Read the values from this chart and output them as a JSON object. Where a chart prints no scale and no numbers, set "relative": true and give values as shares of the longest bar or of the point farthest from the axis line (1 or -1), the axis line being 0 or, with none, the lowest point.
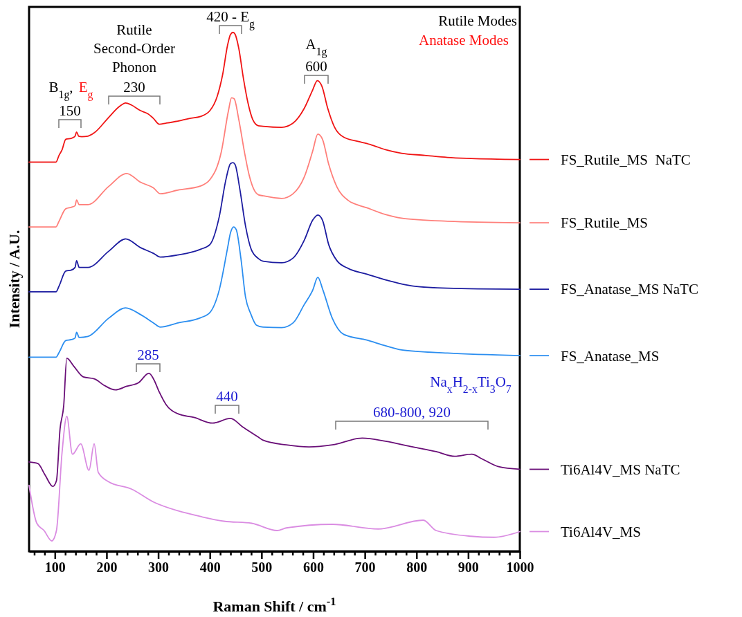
{
  "chart_data": {
    "type": "line",
    "relative": true,
    "xlabel": "Raman Shift / cm$^{-1}$",
    "ylabel": "Intensity / A.U.",
    "xlim": [
      50,
      1000
    ],
    "xticks": [
      {
        "value": 60,
        "label": null
      },
      {
        "value": 80,
        "label": null
      },
      100,
      {
        "value": 120,
        "label": null
      },
      {
        "value": 140,
        "label": null
      },
      {
        "value": 160,
        "label": null
      },
      {
        "value": 180,
        "label": null
      },
      200,
      {
        "value": 220,
        "label": null
      },
      {
        "value": 240,
        "label": null
      },
      {
        "value": 260,
        "label": null
      },
      {
        "value": 280,
        "label": null
      },
      300,
      {
        "value": 320,
        "label": null
      },
      {
        "value": 340,
        "label": null
      },
      {
        "value": 360,
        "label": null
      },
      {
        "value": 380,
        "label": null
      },
      400,
      {
        "value": 420,
        "label": null
      },
      {
        "value": 440,
        "label": null
      },
      {
        "value": 460,
        "label": null
      },
      {
        "value": 480,
        "label": null
      },
      500,
      {
        "value": 520,
        "label": null
      },
      {
        "value": 540,
        "label": null
      },
      {
        "value": 560,
        "label": null
      },
      {
        "value": 580,
        "label": null
      },
      600,
      {
        "value": 620,
        "label": null
      },
      {
        "value": 640,
        "label": null
      },
      {
        "value": 660,
        "label": null
      },
      {
        "value": 680,
        "label": null
      },
      700,
      {
        "value": 720,
        "label": null
      },
      {
        "value": 740,
        "label": null
      },
      {
        "value": 760,
        "label": null
      },
      {
        "value": 780,
        "label": null
      },
      800,
      {
        "value": 820,
        "label": null
      },
      {
        "value": 840,
        "label": null
      },
      {
        "value": 860,
        "label": null
      },
      {
        "value": 880,
        "label": null
      },
      900,
      {
        "value": 920,
        "label": null
      },
      {
        "value": 940,
        "label": null
      },
      {
        "value": 960,
        "label": null
      },
      {
        "value": 980,
        "label": null
      },
      1000
    ],
    "legend": "right",
    "series": [
      {
        "name": "FS_Rutile_MS  NaTC",
        "color": "#f01414",
        "x": [
          50,
          102,
          108,
          114,
          121,
          132,
          139,
          142,
          146,
          152,
          164,
          177,
          204,
          226,
          237,
          248,
          266,
          280,
          291,
          302,
          315,
          338,
          360,
          382,
          400,
          414,
          425,
          434,
          440,
          445,
          449,
          456,
          465,
          474,
          483,
          494,
          503,
          539,
          561,
          583,
          599,
          608,
          617,
          628,
          641,
          659,
          691,
          713,
          740,
          771,
          816,
          860,
          905,
          1000
        ],
        "values": [
          0.75,
          0.75,
          0.763,
          0.774,
          0.794,
          0.796,
          0.8,
          0.808,
          0.8,
          0.799,
          0.8,
          0.807,
          0.836,
          0.858,
          0.864,
          0.86,
          0.849,
          0.843,
          0.834,
          0.823,
          0.825,
          0.829,
          0.834,
          0.838,
          0.849,
          0.876,
          0.92,
          0.974,
          0.996,
          1.0,
          0.996,
          0.969,
          0.911,
          0.863,
          0.832,
          0.82,
          0.819,
          0.817,
          0.825,
          0.854,
          0.889,
          0.907,
          0.896,
          0.854,
          0.818,
          0.798,
          0.789,
          0.783,
          0.774,
          0.767,
          0.763,
          0.759,
          0.757,
          0.755
        ]
      },
      {
        "name": "FS_Rutile_MS",
        "color": "#ff7f7a",
        "x": [
          50,
          102,
          108,
          121,
          132,
          139,
          142,
          147,
          164,
          204,
          239,
          266,
          291,
          304,
          338,
          382,
          400,
          422,
          436,
          442,
          447,
          456,
          467,
          476,
          487,
          494,
          503,
          539,
          561,
          583,
          599,
          609,
          618,
          630,
          646,
          668,
          704,
          740,
          771,
          860,
          1000
        ],
        "values": [
          0.625,
          0.625,
          0.636,
          0.66,
          0.663,
          0.666,
          0.677,
          0.668,
          0.668,
          0.703,
          0.728,
          0.711,
          0.7,
          0.689,
          0.696,
          0.704,
          0.716,
          0.769,
          0.849,
          0.874,
          0.872,
          0.832,
          0.769,
          0.725,
          0.694,
          0.687,
          0.685,
          0.68,
          0.689,
          0.722,
          0.771,
          0.804,
          0.794,
          0.746,
          0.702,
          0.676,
          0.662,
          0.649,
          0.642,
          0.636,
          0.633
        ]
      },
      {
        "name": "FS_Anatase_MS NaTC",
        "color": "#1c1ca0",
        "x": [
          50,
          102,
          108,
          121,
          132,
          139,
          142,
          147,
          164,
          204,
          237,
          266,
          291,
          304,
          338,
          382,
          400,
          418,
          431,
          440,
          445,
          449,
          458,
          469,
          480,
          494,
          503,
          539,
          561,
          583,
          599,
          609,
          618,
          630,
          646,
          668,
          704,
          740,
          794,
          860,
          1000
        ],
        "values": [
          0.5,
          0.5,
          0.511,
          0.54,
          0.542,
          0.547,
          0.56,
          0.547,
          0.547,
          0.578,
          0.602,
          0.585,
          0.574,
          0.567,
          0.571,
          0.582,
          0.591,
          0.644,
          0.716,
          0.747,
          0.749,
          0.745,
          0.698,
          0.627,
          0.582,
          0.564,
          0.559,
          0.556,
          0.565,
          0.6,
          0.638,
          0.648,
          0.638,
          0.591,
          0.56,
          0.545,
          0.534,
          0.523,
          0.511,
          0.507,
          0.505
        ]
      },
      {
        "name": "FS_Anatase_MS",
        "color": "#2b8ef0",
        "x": [
          50,
          102,
          108,
          121,
          132,
          139,
          142,
          147,
          164,
          204,
          237,
          266,
          291,
          304,
          338,
          382,
          400,
          418,
          434,
          440,
          446,
          451,
          460,
          469,
          479,
          490,
          503,
          539,
          561,
          583,
          599,
          609,
          619,
          637,
          659,
          704,
          740,
          771,
          860,
          1000
        ],
        "values": [
          0.374,
          0.374,
          0.383,
          0.406,
          0.408,
          0.411,
          0.422,
          0.412,
          0.414,
          0.449,
          0.469,
          0.456,
          0.44,
          0.432,
          0.44,
          0.45,
          0.46,
          0.503,
          0.583,
          0.614,
          0.625,
          0.62,
          0.565,
          0.49,
          0.458,
          0.436,
          0.432,
          0.431,
          0.44,
          0.476,
          0.503,
          0.528,
          0.503,
          0.449,
          0.418,
          0.407,
          0.396,
          0.388,
          0.382,
          0.377
        ]
      },
      {
        "name": "Ti6Al4V_MS NaTC",
        "color": "#6a0f78",
        "x": [
          50,
          67,
          81,
          96,
          103,
          110,
          117,
          123,
          137,
          155,
          177,
          195,
          217,
          239,
          262,
          282,
          291,
          302,
          315,
          338,
          369,
          405,
          440,
          463,
          494,
          503,
          548,
          592,
          637,
          695,
          740,
          793,
          838,
          874,
          907,
          927,
          959,
          1000
        ],
        "values": [
          0.172,
          0.169,
          0.147,
          0.125,
          0.136,
          0.236,
          0.28,
          0.372,
          0.356,
          0.336,
          0.332,
          0.32,
          0.311,
          0.318,
          0.325,
          0.343,
          0.332,
          0.307,
          0.283,
          0.265,
          0.258,
          0.247,
          0.256,
          0.24,
          0.22,
          0.214,
          0.205,
          0.201,
          0.205,
          0.218,
          0.212,
          0.201,
          0.192,
          0.183,
          0.187,
          0.178,
          0.163,
          0.158
        ]
      },
      {
        "name": "Ti6Al4V_MS",
        "color": "#da8ce2",
        "x": [
          50,
          65,
          79,
          94,
          103,
          114,
          123,
          134,
          150,
          166,
          176,
          184,
          204,
          248,
          293,
          338,
          382,
          427,
          481,
          530,
          548,
          637,
          726,
          813,
          838,
          905,
          950,
          1000
        ],
        "values": [
          0.127,
          0.054,
          0.04,
          0.02,
          0.04,
          0.192,
          0.26,
          0.187,
          0.207,
          0.156,
          0.207,
          0.152,
          0.134,
          0.12,
          0.094,
          0.078,
          0.067,
          0.058,
          0.054,
          0.04,
          0.045,
          0.052,
          0.043,
          0.06,
          0.04,
          0.029,
          0.027,
          0.038
        ]
      }
    ],
    "annotations": [
      "Rutile Modes",
      "Anatase Modes",
      "Na$_{x}$H$_{2-x}$Ti$_{3}$O$_{7}$",
      "B$_{1g}$,",
      "E$_{g}$",
      "150",
      "Rutile Second-Order Phonon",
      "230",
      "420 - E$_{g}$",
      "A$_{1g}$",
      "600",
      "285",
      "440",
      "680-800, 920"
    ]
  }
}
